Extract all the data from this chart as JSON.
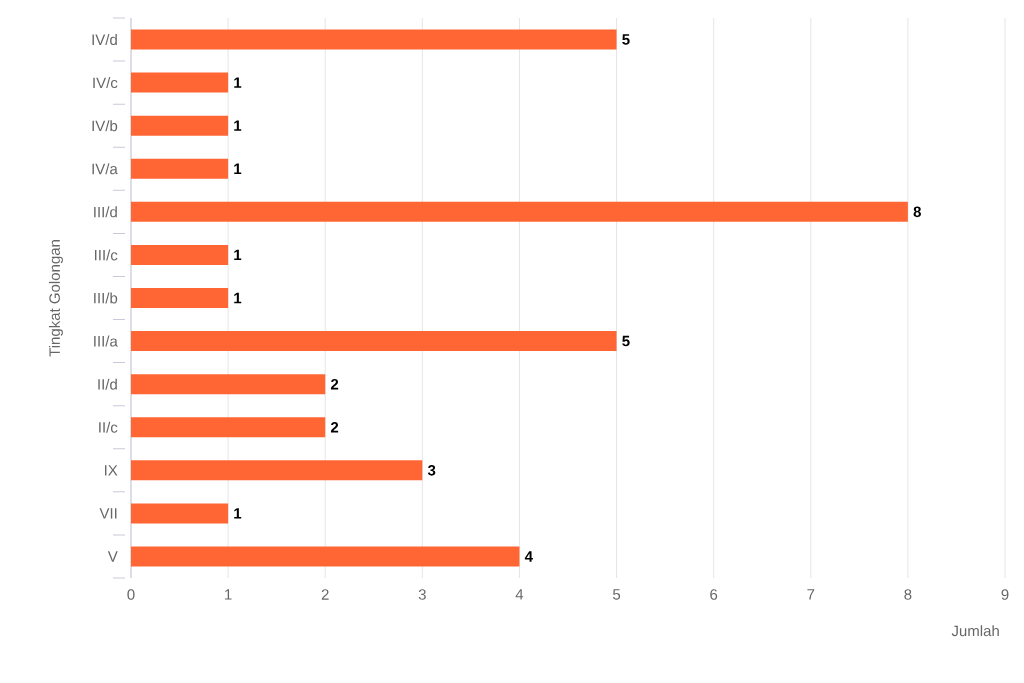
{
  "chart_data": {
    "type": "bar",
    "orientation": "horizontal",
    "xlabel": "Jumlah",
    "ylabel": "Tingkat Golongan",
    "categories": [
      "IV/d",
      "IV/c",
      "IV/b",
      "IV/a",
      "III/d",
      "III/c",
      "III/b",
      "III/a",
      "II/d",
      "II/c",
      "IX",
      "VII",
      "V"
    ],
    "values": [
      5,
      1,
      1,
      1,
      8,
      1,
      1,
      5,
      2,
      2,
      3,
      1,
      4
    ],
    "color": "#ff6633",
    "xlim": [
      0,
      9
    ],
    "xticks": [
      0,
      1,
      2,
      3,
      4,
      5,
      6,
      7,
      8,
      9
    ],
    "grid": "x",
    "data_labels": true
  }
}
